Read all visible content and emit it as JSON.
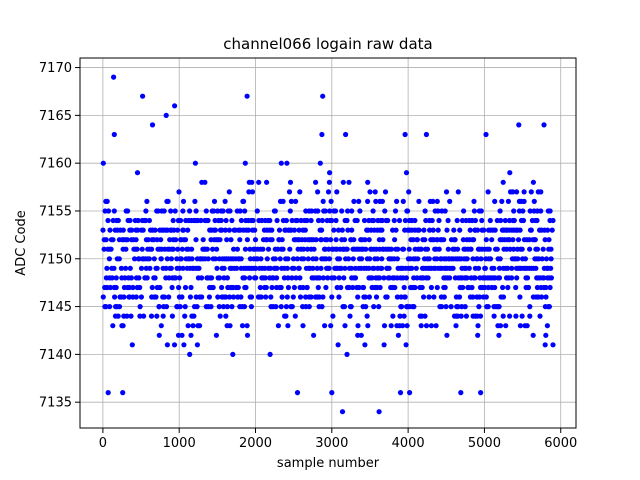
{
  "chart_data": {
    "type": "scatter",
    "title": "channel066 logain raw data",
    "xlabel": "sample number",
    "ylabel": "ADC Code",
    "xlim": [
      -300,
      6200
    ],
    "ylim": [
      7132.3,
      7171.0
    ],
    "xticks": [
      0,
      1000,
      2000,
      3000,
      4000,
      5000,
      6000
    ],
    "yticks": [
      7135,
      7140,
      7145,
      7150,
      7155,
      7160,
      7165,
      7170
    ],
    "grid": true,
    "series_color": "#0000ff",
    "marker": "circle",
    "n_samples": 5900,
    "value_range": [
      7134,
      7169
    ],
    "typical_band": [
      7140,
      7160
    ],
    "center_value": 7150,
    "outliers": [
      {
        "x": 140,
        "y": 7169
      },
      {
        "x": 520,
        "y": 7167
      },
      {
        "x": 940,
        "y": 7166
      },
      {
        "x": 1890,
        "y": 7167
      },
      {
        "x": 2880,
        "y": 7167
      },
      {
        "x": 830,
        "y": 7165
      },
      {
        "x": 650,
        "y": 7164
      },
      {
        "x": 5450,
        "y": 7164
      },
      {
        "x": 5780,
        "y": 7164
      },
      {
        "x": 150,
        "y": 7163
      },
      {
        "x": 2870,
        "y": 7163
      },
      {
        "x": 3180,
        "y": 7163
      },
      {
        "x": 3960,
        "y": 7163
      },
      {
        "x": 4240,
        "y": 7163
      },
      {
        "x": 5020,
        "y": 7163
      },
      {
        "x": 70,
        "y": 7136
      },
      {
        "x": 260,
        "y": 7136
      },
      {
        "x": 2550,
        "y": 7136
      },
      {
        "x": 3000,
        "y": 7136
      },
      {
        "x": 3900,
        "y": 7136
      },
      {
        "x": 4020,
        "y": 7136
      },
      {
        "x": 4690,
        "y": 7136
      },
      {
        "x": 4950,
        "y": 7136
      },
      {
        "x": 3140,
        "y": 7134
      },
      {
        "x": 3620,
        "y": 7134
      }
    ]
  }
}
